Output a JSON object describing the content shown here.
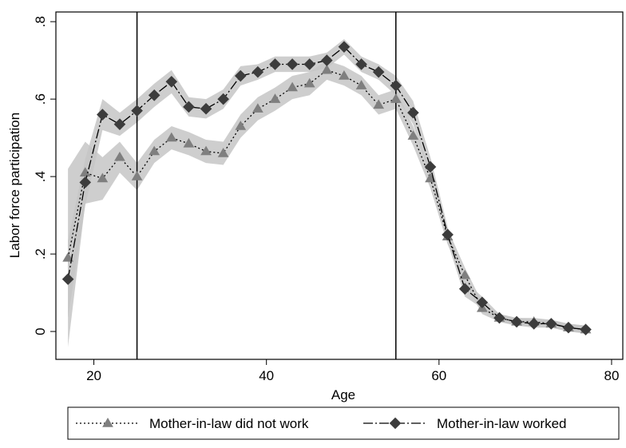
{
  "chart_data": {
    "type": "line",
    "xlabel": "Age",
    "ylabel": "Labor force participation",
    "x": [
      17,
      19,
      21,
      23,
      25,
      27,
      29,
      31,
      33,
      35,
      37,
      39,
      41,
      43,
      45,
      47,
      49,
      51,
      53,
      55,
      57,
      59,
      61,
      63,
      65,
      67,
      69,
      71,
      73,
      75,
      77
    ],
    "series": [
      {
        "name": "Mother-in-law did not work",
        "color": "#7f7f7f",
        "marker": "triangle",
        "dash": "2,3",
        "band_color": "#c6c6c6",
        "values": [
          0.19,
          0.41,
          0.395,
          0.45,
          0.4,
          0.465,
          0.5,
          0.485,
          0.465,
          0.46,
          0.53,
          0.575,
          0.6,
          0.63,
          0.64,
          0.675,
          0.66,
          0.635,
          0.585,
          0.6,
          0.505,
          0.395,
          0.245,
          0.145,
          0.06,
          0.035,
          0.025,
          0.025,
          0.02,
          0.01,
          0.005
        ],
        "lower": [
          -0.04,
          0.33,
          0.34,
          0.41,
          0.365,
          0.435,
          0.47,
          0.455,
          0.435,
          0.43,
          0.5,
          0.545,
          0.57,
          0.6,
          0.61,
          0.65,
          0.635,
          0.61,
          0.56,
          0.575,
          0.48,
          0.37,
          0.225,
          0.125,
          0.045,
          0.025,
          0.015,
          0.015,
          0.01,
          0,
          -0.005
        ],
        "upper": [
          0.42,
          0.49,
          0.45,
          0.49,
          0.435,
          0.495,
          0.53,
          0.515,
          0.495,
          0.49,
          0.56,
          0.605,
          0.63,
          0.66,
          0.67,
          0.7,
          0.685,
          0.66,
          0.61,
          0.625,
          0.53,
          0.42,
          0.265,
          0.165,
          0.075,
          0.045,
          0.035,
          0.035,
          0.03,
          0.02,
          0.015
        ]
      },
      {
        "name": "Mother-in-law worked",
        "color": "#3c3c3c",
        "marker": "diamond",
        "dash": "12,3,2,3",
        "band_color": "#c6c6c6",
        "values": [
          0.135,
          0.385,
          0.56,
          0.535,
          0.57,
          0.61,
          0.645,
          0.58,
          0.575,
          0.6,
          0.66,
          0.67,
          0.69,
          0.69,
          0.69,
          0.7,
          0.735,
          0.69,
          0.67,
          0.635,
          0.565,
          0.425,
          0.25,
          0.11,
          0.075,
          0.035,
          0.025,
          0.02,
          0.02,
          0.01,
          0.005
        ],
        "lower": [
          0.035,
          0.325,
          0.52,
          0.505,
          0.54,
          0.58,
          0.615,
          0.555,
          0.55,
          0.575,
          0.635,
          0.65,
          0.67,
          0.67,
          0.67,
          0.68,
          0.715,
          0.67,
          0.65,
          0.61,
          0.535,
          0.4,
          0.23,
          0.09,
          0.06,
          0.025,
          0.015,
          0.01,
          0.01,
          0,
          -0.005
        ],
        "upper": [
          0.235,
          0.445,
          0.6,
          0.565,
          0.6,
          0.64,
          0.675,
          0.605,
          0.6,
          0.625,
          0.685,
          0.69,
          0.71,
          0.71,
          0.71,
          0.72,
          0.755,
          0.71,
          0.69,
          0.66,
          0.595,
          0.45,
          0.27,
          0.13,
          0.09,
          0.045,
          0.035,
          0.03,
          0.03,
          0.02,
          0.015
        ]
      }
    ],
    "xlines": [
      25,
      55
    ],
    "xlim": [
      15.6,
      81.3
    ],
    "ylim": [
      -0.072,
      0.825
    ],
    "xticks": [
      20,
      40,
      60,
      80
    ],
    "yticks": [
      0,
      {
        "value": 0.2,
        "label": ".2"
      },
      {
        "value": 0.4,
        "label": ".4"
      },
      {
        "value": 0.6,
        "label": ".6"
      },
      {
        "value": 0.8,
        "label": ".8"
      }
    ],
    "legend": "bottom"
  }
}
